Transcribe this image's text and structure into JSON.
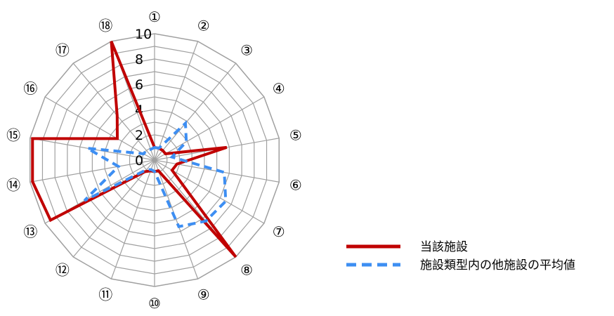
{
  "chart_data": {
    "type": "radar",
    "categories": [
      "①",
      "②",
      "③",
      "④",
      "⑤",
      "⑥",
      "⑦",
      "⑧",
      "⑨",
      "⑩",
      "⑪",
      "⑫",
      "⑬",
      "⑭",
      "⑮",
      "⑯",
      "⑰",
      "⑱"
    ],
    "rlim": [
      0,
      10
    ],
    "ticks": [
      "0",
      "2",
      "4",
      "6",
      "8",
      "10"
    ],
    "grid": true,
    "legend_position": "bottom-right",
    "series": [
      {
        "name": "当該施設",
        "color": "#c00000",
        "line_style": "solid",
        "values": [
          1.0,
          1.0,
          1.0,
          1.0,
          5.8,
          1.8,
          1.6,
          10.0,
          0.9,
          0.9,
          0.9,
          1.2,
          9.5,
          9.8,
          9.8,
          3.4,
          4.6,
          10.0
        ]
      },
      {
        "name": "施設類型内の他施設の平均値",
        "color": "#3d8ef2",
        "line_style": "dashed",
        "values": [
          1.0,
          1.0,
          3.8,
          2.9,
          1.4,
          5.6,
          6.5,
          6.3,
          5.6,
          0.9,
          0.8,
          1.0,
          6.4,
          2.9,
          5.4,
          1.0,
          1.0,
          0.9
        ]
      }
    ]
  }
}
